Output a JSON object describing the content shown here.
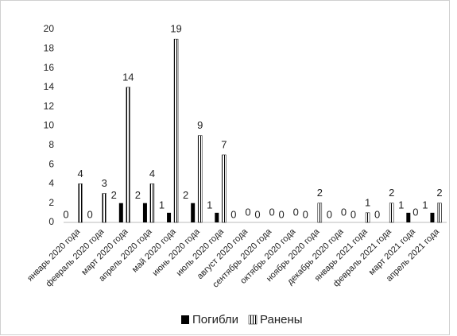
{
  "chart_data": {
    "type": "bar",
    "categories": [
      "январь 2020 года",
      "февраль 2020 года",
      "март 2020 года",
      "апрель 2020 года",
      "май 2020 года",
      "июнь 2020 года",
      "июль 2020 года",
      "август 2020 года",
      "сентябрь 2020 года",
      "октябрь 2020 года",
      "ноябрь 2020 года",
      "декабрь 2020 года",
      "январь 2021 года",
      "февраль 2021 года",
      "март 2021 года",
      "апрель 2021 года"
    ],
    "series": [
      {
        "name": "Погибли",
        "color": "#000000",
        "fill": "solid",
        "values": [
          0,
          0,
          2,
          2,
          1,
          2,
          1,
          0,
          0,
          0,
          0,
          0,
          0,
          0,
          1,
          1
        ]
      },
      {
        "name": "Ранены",
        "color": "#000000",
        "fill": "vertical-stripes",
        "values": [
          4,
          3,
          14,
          4,
          19,
          9,
          7,
          0,
          0,
          0,
          2,
          0,
          1,
          2,
          0,
          2
        ]
      }
    ],
    "ylim": [
      0,
      20
    ],
    "yticks": [
      0,
      2,
      4,
      6,
      8,
      10,
      12,
      14,
      16,
      18,
      20
    ],
    "grid": false,
    "legend": "bottom",
    "data_labels": true
  }
}
